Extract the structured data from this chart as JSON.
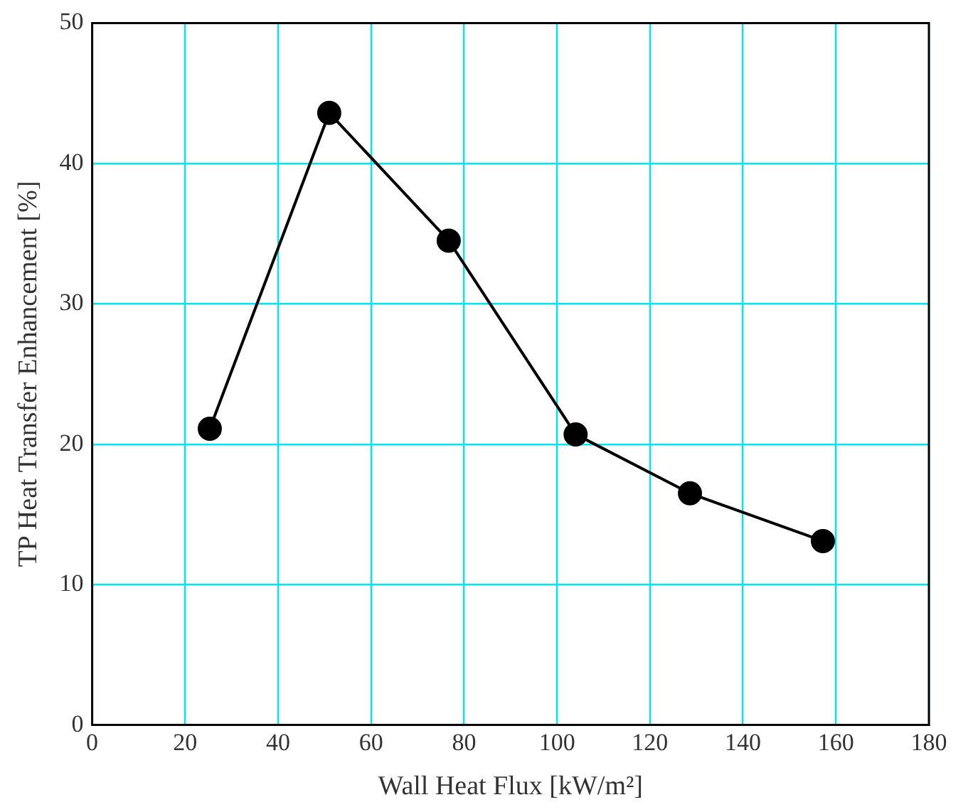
{
  "chart_data": {
    "type": "line",
    "xlabel": "Wall Heat Flux [kW/m²]",
    "ylabel": "TP Heat Transfer Enhancement [%]",
    "x": [
      25.3,
      51,
      76.7,
      104,
      128.6,
      157.2
    ],
    "series": [
      {
        "color": "#000000",
        "values": [
          21.1,
          43.6,
          34.5,
          20.7,
          16.5,
          13.1
        ]
      }
    ],
    "xlim": [
      0,
      180
    ],
    "xticks": [
      0,
      20,
      40,
      60,
      80,
      100,
      120,
      140,
      160,
      180
    ],
    "ylim": [
      0,
      50
    ],
    "yticks": [
      0,
      10,
      20,
      30,
      40,
      50
    ],
    "grid": true,
    "legend": false,
    "marker": "circle",
    "line_style": "solid"
  }
}
